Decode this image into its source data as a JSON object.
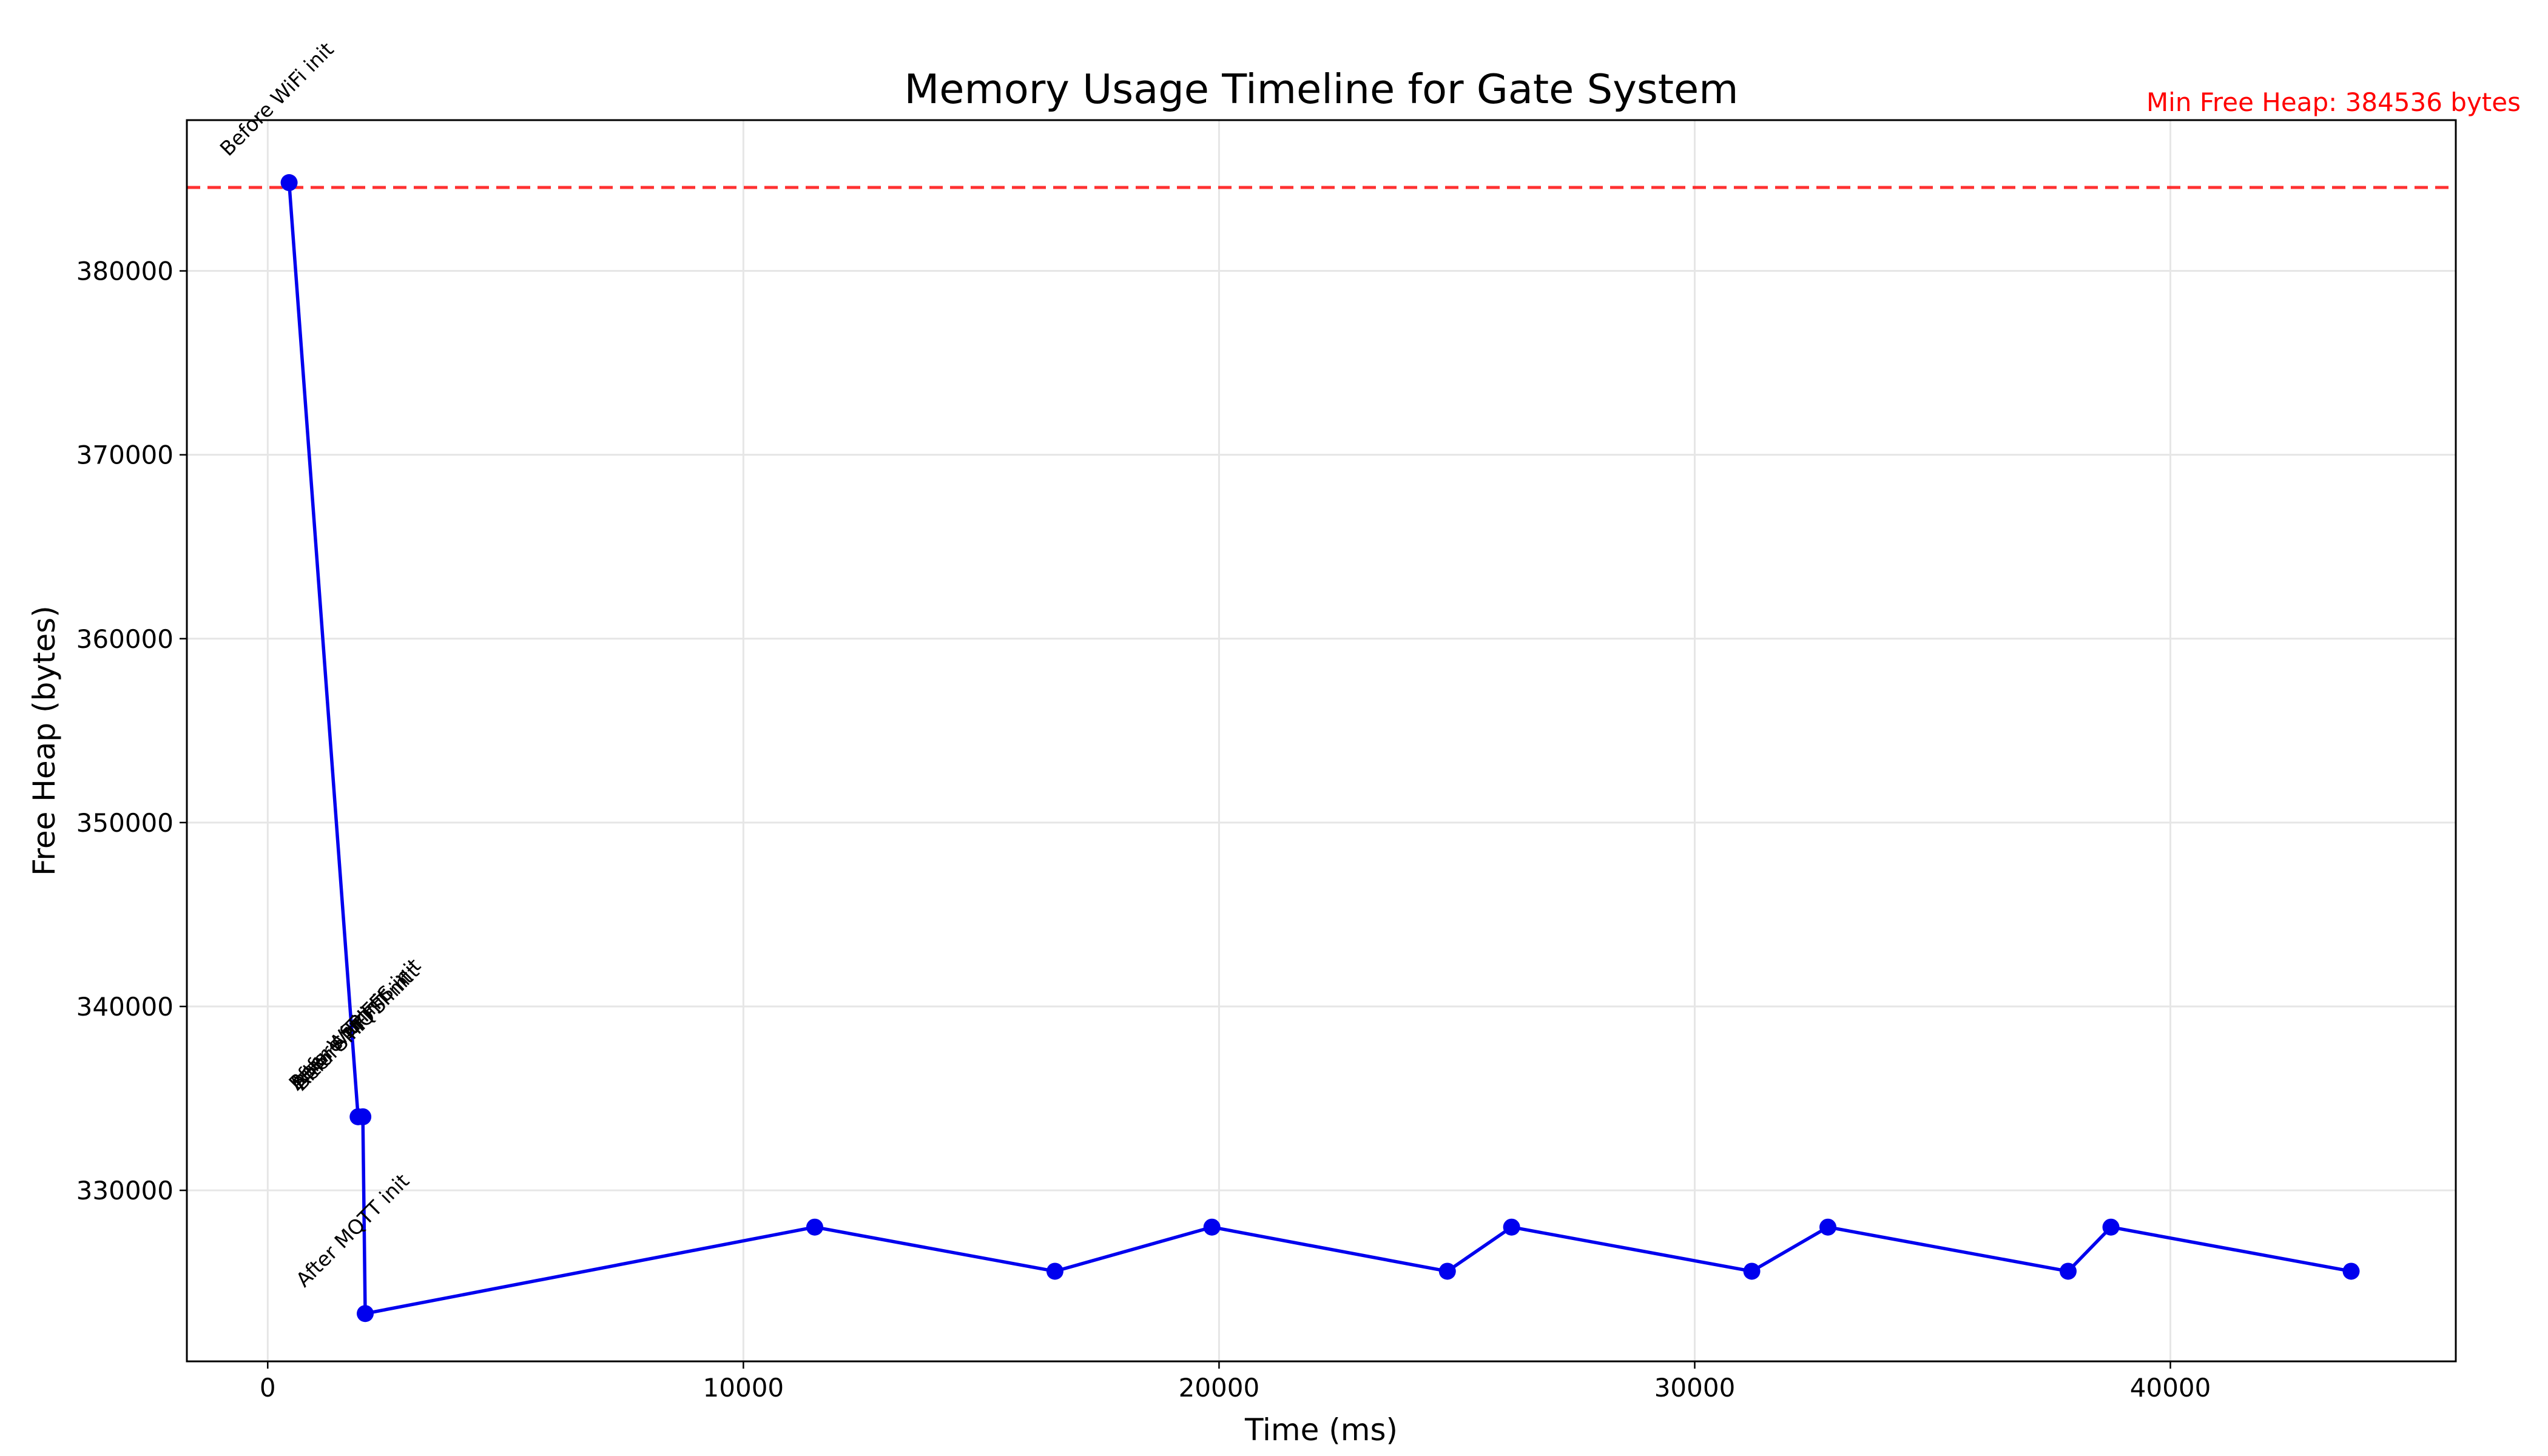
{
  "chart_data": {
    "type": "line",
    "title": "Memory Usage Timeline for Gate System",
    "xlabel": "Time (ms)",
    "ylabel": "Free Heap (bytes)",
    "xlim": [
      -1700,
      46000
    ],
    "ylim": [
      320700,
      388200
    ],
    "x_ticks": [
      0,
      10000,
      20000,
      30000,
      40000
    ],
    "y_ticks": [
      330000,
      340000,
      350000,
      360000,
      370000,
      380000
    ],
    "grid": true,
    "colors": {
      "series": "#0000ee",
      "reference": "#ff0000"
    },
    "reference_line": {
      "y": 384536,
      "label": "Min Free Heap: 384536 bytes"
    },
    "series": [
      {
        "x": [
          450,
          1900,
          2000,
          2050,
          11500,
          16550,
          19850,
          24800,
          26150,
          31200,
          32800,
          37850,
          38750,
          43800
        ],
        "y": [
          384800,
          334000,
          334000,
          323300,
          328000,
          325600,
          328000,
          325600,
          328000,
          325600,
          328000,
          325600,
          328000,
          325600
        ]
      }
    ],
    "annotations": [
      {
        "text": "Before WiFi init",
        "x": 450,
        "y": 384800
      },
      {
        "text": "After WiFi init",
        "x": 1900,
        "y": 334000
      },
      {
        "text": "Before SPIFFS init",
        "x": 1900,
        "y": 334000
      },
      {
        "text": "After SPIFFS init",
        "x": 2000,
        "y": 334000
      },
      {
        "text": "Before MQTT init",
        "x": 2000,
        "y": 334000
      },
      {
        "text": "After MQTT init",
        "x": 2050,
        "y": 323300
      }
    ]
  }
}
